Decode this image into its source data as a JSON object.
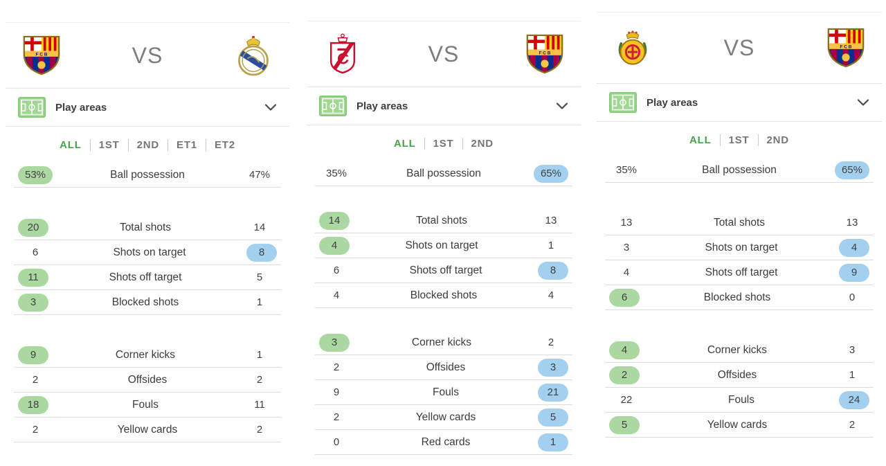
{
  "colors": {
    "home_highlight_green": "#abd8a0",
    "away_highlight_blue": "#a4d0f0",
    "active_tab_green": "#46a049",
    "inactive_tab_gray": "#757575"
  },
  "panels": [
    {
      "home_team_icon": "fc-barcelona-crest",
      "away_team_icon": "real-madrid-crest",
      "vs_label": "VS",
      "play_areas_label": "Play areas",
      "tabs": [
        {
          "label": "ALL",
          "active": true
        },
        {
          "label": "1ST",
          "active": false
        },
        {
          "label": "2ND",
          "active": false
        },
        {
          "label": "ET1",
          "active": false
        },
        {
          "label": "ET2",
          "active": false
        }
      ],
      "stat_groups": [
        [
          {
            "home": "53%",
            "label": "Ball possession",
            "away": "47%",
            "hl": "home"
          }
        ],
        [
          {
            "home": "20",
            "label": "Total shots",
            "away": "14",
            "hl": "home"
          },
          {
            "home": "6",
            "label": "Shots on target",
            "away": "8",
            "hl": "away"
          },
          {
            "home": "11",
            "label": "Shots off target",
            "away": "5",
            "hl": "home"
          },
          {
            "home": "3",
            "label": "Blocked shots",
            "away": "1",
            "hl": "home"
          }
        ],
        [
          {
            "home": "9",
            "label": "Corner kicks",
            "away": "1",
            "hl": "home"
          },
          {
            "home": "2",
            "label": "Offsides",
            "away": "2",
            "hl": "none"
          },
          {
            "home": "18",
            "label": "Fouls",
            "away": "11",
            "hl": "home"
          },
          {
            "home": "2",
            "label": "Yellow cards",
            "away": "2",
            "hl": "none"
          }
        ]
      ]
    },
    {
      "home_team_icon": "granada-crest",
      "away_team_icon": "fc-barcelona-crest",
      "vs_label": "VS",
      "play_areas_label": "Play areas",
      "tabs": [
        {
          "label": "ALL",
          "active": true
        },
        {
          "label": "1ST",
          "active": false
        },
        {
          "label": "2ND",
          "active": false
        }
      ],
      "stat_groups": [
        [
          {
            "home": "35%",
            "label": "Ball possession",
            "away": "65%",
            "hl": "away"
          }
        ],
        [
          {
            "home": "14",
            "label": "Total shots",
            "away": "13",
            "hl": "home"
          },
          {
            "home": "4",
            "label": "Shots on target",
            "away": "1",
            "hl": "home"
          },
          {
            "home": "6",
            "label": "Shots off target",
            "away": "8",
            "hl": "away"
          },
          {
            "home": "4",
            "label": "Blocked shots",
            "away": "4",
            "hl": "none"
          }
        ],
        [
          {
            "home": "3",
            "label": "Corner kicks",
            "away": "2",
            "hl": "home"
          },
          {
            "home": "2",
            "label": "Offsides",
            "away": "3",
            "hl": "away"
          },
          {
            "home": "9",
            "label": "Fouls",
            "away": "21",
            "hl": "away"
          },
          {
            "home": "2",
            "label": "Yellow cards",
            "away": "5",
            "hl": "away"
          },
          {
            "home": "0",
            "label": "Red cards",
            "away": "1",
            "hl": "away"
          }
        ]
      ]
    },
    {
      "home_team_icon": "mallorca-crest",
      "away_team_icon": "fc-barcelona-crest",
      "vs_label": "VS",
      "play_areas_label": "Play areas",
      "tabs": [
        {
          "label": "ALL",
          "active": true
        },
        {
          "label": "1ST",
          "active": false
        },
        {
          "label": "2ND",
          "active": false
        }
      ],
      "stat_groups": [
        [
          {
            "home": "35%",
            "label": "Ball possession",
            "away": "65%",
            "hl": "away"
          }
        ],
        [
          {
            "home": "13",
            "label": "Total shots",
            "away": "13",
            "hl": "none"
          },
          {
            "home": "3",
            "label": "Shots on target",
            "away": "4",
            "hl": "away"
          },
          {
            "home": "4",
            "label": "Shots off target",
            "away": "9",
            "hl": "away"
          },
          {
            "home": "6",
            "label": "Blocked shots",
            "away": "0",
            "hl": "home"
          }
        ],
        [
          {
            "home": "4",
            "label": "Corner kicks",
            "away": "3",
            "hl": "home"
          },
          {
            "home": "2",
            "label": "Offsides",
            "away": "1",
            "hl": "home"
          },
          {
            "home": "22",
            "label": "Fouls",
            "away": "24",
            "hl": "away"
          },
          {
            "home": "5",
            "label": "Yellow cards",
            "away": "2",
            "hl": "home"
          }
        ]
      ]
    }
  ]
}
